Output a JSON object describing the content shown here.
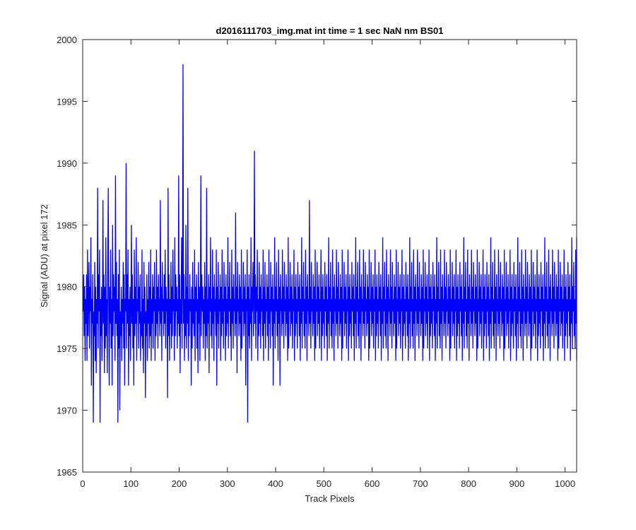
{
  "chart_data": {
    "type": "line",
    "title": "d2016111703_img.mat int time = 1 sec  NaN nm BS01",
    "xlabel": "Track Pixels",
    "ylabel": "Signal (ADU) at pixel 172",
    "xlim": [
      0,
      1024
    ],
    "ylim": [
      1965,
      2000
    ],
    "xticks": [
      "0",
      "100",
      "200",
      "300",
      "400",
      "500",
      "600",
      "700",
      "800",
      "900",
      "1000"
    ],
    "yticks": [
      "1965",
      "1970",
      "1975",
      "1980",
      "1985",
      "1990",
      "1995",
      "2000"
    ],
    "grid": false,
    "legend": "none",
    "series": [
      {
        "color": "#0000ff",
        "x_start": 1,
        "x_step": 1,
        "values": [
          1978,
          1981,
          1976,
          1980,
          1974,
          1979,
          1977,
          1981,
          1974,
          1983,
          1976,
          1979,
          1982,
          1975,
          1980,
          1978,
          1984,
          1972,
          1979,
          1977,
          1981,
          1969,
          1978,
          1976,
          1982,
          1974,
          1980,
          1973,
          1979,
          1977,
          1988,
          1975,
          1981,
          1978,
          1983,
          1969,
          1979,
          1976,
          1980,
          1974,
          1978,
          1987,
          1977,
          1981,
          1973,
          1980,
          1975,
          1984,
          1976,
          1979,
          1973,
          1982,
          1988,
          1978,
          1972,
          1980,
          1977,
          1983,
          1975,
          1979,
          1972,
          1985,
          1976,
          1981,
          1978,
          1980,
          1974,
          1989,
          1977,
          1982,
          1976,
          1979,
          1969,
          1981,
          1975,
          1983,
          1970,
          1978,
          1976,
          1980,
          1974,
          1979,
          1977,
          1982,
          1975,
          1981,
          1972,
          1979,
          1978,
          1990,
          1975,
          1981,
          1977,
          1983,
          1972,
          1979,
          1976,
          1980,
          1974,
          1978,
          1985,
          1977,
          1981,
          1975,
          1979,
          1972,
          1983,
          1976,
          1980,
          1977,
          1984,
          1974,
          1979,
          1978,
          1982,
          1975,
          1980,
          1977,
          1981,
          1974,
          1978,
          1976,
          1983,
          1975,
          1979,
          1973,
          1982,
          1977,
          1980,
          1971,
          1978,
          1976,
          1981,
          1974,
          1979,
          1977,
          1982,
          1975,
          1980,
          1976,
          1983,
          1974,
          1979,
          1977,
          1981,
          1975,
          1980,
          1978,
          1982,
          1974,
          1979,
          1976,
          1983,
          1977,
          1980,
          1975,
          1981,
          1978,
          1979,
          1976,
          1987,
          1977,
          1980,
          1974,
          1982,
          1978,
          1979,
          1976,
          1981,
          1977,
          1983,
          1975,
          1980,
          1978,
          1979,
          1971,
          1988,
          1976,
          1981,
          1974,
          1979,
          1977,
          1982,
          1975,
          1980,
          1976,
          1983,
          1978,
          1979,
          1974,
          1984,
          1976,
          1981,
          1978,
          1980,
          1975,
          1979,
          1977,
          1989,
          1976,
          1981,
          1973,
          1979,
          1977,
          1984,
          1975,
          1980,
          1998,
          1977,
          1981,
          1974,
          1979,
          1976,
          1985,
          1975,
          1980,
          1977,
          1988,
          1974,
          1979,
          1976,
          1981,
          1978,
          1979,
          1972,
          1980,
          1975,
          1982,
          1977,
          1979,
          1976,
          1983,
          1974,
          1980,
          1978,
          1981,
          1975,
          1979,
          1973,
          1982,
          1977,
          1980,
          1974,
          1979,
          1989,
          1976,
          1981,
          1978,
          1980,
          1975,
          1979,
          1977,
          1982,
          1974,
          1980,
          1976,
          1988,
          1975,
          1979,
          1977,
          1981,
          1973,
          1980,
          1978,
          1984,
          1976,
          1979,
          1975,
          1983,
          1977,
          1980,
          1974,
          1981,
          1978,
          1979,
          1976,
          1983,
          1972,
          1980,
          1977,
          1982,
          1975,
          1979,
          1978,
          1981,
          1974,
          1980,
          1976,
          1983,
          1977,
          1979,
          1975,
          1982,
          1978,
          1980,
          1974,
          1981,
          1976,
          1979,
          1977,
          1984,
          1975,
          1980,
          1978,
          1982,
          1976,
          1979,
          1974,
          1983,
          1977,
          1980,
          1975,
          1981,
          1978,
          1979,
          1976,
          1986,
          1977,
          1980,
          1973,
          1982,
          1978,
          1979,
          1976,
          1981,
          1977,
          1980,
          1974,
          1983,
          1975,
          1979,
          1978,
          1982,
          1976,
          1980,
          1977,
          1981,
          1972,
          1979,
          1978,
          1983,
          1969,
          1980,
          1976,
          1981,
          1975,
          1979,
          1977,
          1984,
          1974,
          1980,
          1978,
          1982,
          1976,
          1979,
          1991,
          1977,
          1981,
          1975,
          1980,
          1978,
          1983,
          1974,
          1979,
          1976,
          1982,
          1977,
          1980,
          1975,
          1981,
          1978,
          1979,
          1976,
          1983,
          1974,
          1980,
          1977,
          1982,
          1975,
          1979,
          1978,
          1981,
          1976,
          1980,
          1974,
          1983,
          1977,
          1979,
          1975,
          1982,
          1978,
          1980,
          1976,
          1981,
          1972,
          1979,
          1977,
          1984,
          1975,
          1980,
          1978,
          1982,
          1976,
          1979,
          1974,
          1983,
          1977,
          1980,
          1972,
          1981,
          1978,
          1979,
          1976,
          1983,
          1977,
          1980,
          1975,
          1982,
          1978,
          1979,
          1976,
          1981,
          1977,
          1980,
          1974,
          1984,
          1975,
          1979,
          1978,
          1982,
          1976,
          1980,
          1977,
          1981,
          1975,
          1979,
          1978,
          1983,
          1974,
          1980,
          1976,
          1981,
          1977,
          1979,
          1975,
          1982,
          1978,
          1980,
          1976,
          1981,
          1974,
          1979,
          1977,
          1984,
          1975,
          1980,
          1978,
          1982,
          1976,
          1979,
          1975,
          1983,
          1977,
          1980,
          1974,
          1981,
          1978,
          1979,
          1976,
          1987,
          1977,
          1980,
          1975,
          1982,
          1978,
          1979,
          1976,
          1981,
          1977,
          1980,
          1974,
          1983,
          1975,
          1979,
          1978,
          1982,
          1976,
          1980,
          1977,
          1981,
          1975,
          1979,
          1978,
          1983,
          1974,
          1980,
          1976,
          1981,
          1977,
          1979,
          1975,
          1982,
          1978,
          1980,
          1976,
          1981,
          1974,
          1979,
          1977,
          1984,
          1975,
          1980,
          1978,
          1982,
          1976,
          1979,
          1975,
          1983,
          1977,
          1980,
          1974,
          1981,
          1978,
          1979,
          1976,
          1983,
          1977,
          1980,
          1975,
          1982,
          1978,
          1979,
          1976,
          1981,
          1977,
          1980,
          1974,
          1983,
          1975,
          1979,
          1978,
          1982,
          1976,
          1980,
          1977,
          1981,
          1975,
          1979,
          1978,
          1983,
          1974,
          1980,
          1976,
          1981,
          1977,
          1979,
          1975,
          1982,
          1978,
          1980,
          1976,
          1981,
          1974,
          1979,
          1977,
          1984,
          1975,
          1980,
          1978,
          1982,
          1976,
          1979,
          1975,
          1983,
          1977,
          1980,
          1974,
          1981,
          1978,
          1979,
          1976,
          1983,
          1977,
          1980,
          1975,
          1982,
          1978,
          1979,
          1976,
          1981,
          1977,
          1980,
          1974,
          1983,
          1975,
          1979,
          1978,
          1982,
          1976,
          1980,
          1977,
          1981,
          1975,
          1979,
          1978,
          1983,
          1974,
          1980,
          1976,
          1981,
          1977,
          1979,
          1975,
          1982,
          1978,
          1980,
          1976,
          1981,
          1974,
          1979,
          1977,
          1984,
          1975,
          1980,
          1978,
          1982,
          1976,
          1979,
          1975,
          1983,
          1977,
          1980,
          1974,
          1981,
          1978,
          1979,
          1976,
          1983,
          1977,
          1980,
          1975,
          1982,
          1978,
          1979,
          1976,
          1981,
          1977,
          1980,
          1974,
          1983,
          1975,
          1979,
          1978,
          1982,
          1976,
          1980,
          1977,
          1981,
          1975,
          1979,
          1978,
          1983,
          1974,
          1980,
          1976,
          1981,
          1977,
          1979,
          1975,
          1982,
          1978,
          1980,
          1976,
          1981,
          1974,
          1979,
          1977,
          1984,
          1975,
          1980,
          1978,
          1982,
          1976,
          1979,
          1975,
          1983,
          1977,
          1980,
          1974,
          1981,
          1978,
          1979,
          1976,
          1983,
          1977,
          1980,
          1975,
          1982,
          1978,
          1979,
          1976,
          1981,
          1977,
          1980,
          1974,
          1983,
          1975,
          1979,
          1978,
          1982,
          1976,
          1980,
          1977,
          1981,
          1975,
          1979,
          1978,
          1983,
          1974,
          1980,
          1976,
          1981,
          1977,
          1979,
          1975,
          1982,
          1978,
          1980,
          1976,
          1981,
          1974,
          1979,
          1977,
          1984,
          1975,
          1980,
          1978,
          1982,
          1976,
          1979,
          1975,
          1983,
          1977,
          1980,
          1974,
          1981,
          1978,
          1979,
          1976,
          1983,
          1977,
          1980,
          1975,
          1982,
          1978,
          1979,
          1976,
          1981,
          1977,
          1980,
          1974,
          1983,
          1975,
          1979,
          1978,
          1982,
          1976,
          1980,
          1977,
          1981,
          1975,
          1979,
          1978,
          1983,
          1974,
          1980,
          1976,
          1981,
          1977,
          1979,
          1975,
          1982,
          1978,
          1980,
          1976,
          1981,
          1974,
          1979,
          1977,
          1984,
          1975,
          1980,
          1978,
          1982,
          1976,
          1979,
          1975,
          1983,
          1977,
          1980,
          1974,
          1981,
          1978,
          1979,
          1976,
          1983,
          1977,
          1980,
          1975,
          1982,
          1978,
          1979,
          1976,
          1981,
          1977,
          1980,
          1974,
          1983,
          1975,
          1979,
          1978,
          1982,
          1976,
          1980,
          1977,
          1981,
          1975,
          1979,
          1978,
          1983,
          1974,
          1980,
          1976,
          1981,
          1977,
          1979,
          1975,
          1982,
          1978,
          1980,
          1976,
          1981,
          1974,
          1979,
          1977,
          1984,
          1975,
          1980,
          1978,
          1982,
          1976,
          1979,
          1975,
          1983,
          1977,
          1980,
          1974,
          1981,
          1978,
          1979,
          1976,
          1983,
          1977,
          1980,
          1975,
          1982,
          1978,
          1979,
          1976,
          1981,
          1977,
          1980,
          1974,
          1983,
          1975,
          1979,
          1978,
          1982,
          1976,
          1980,
          1977,
          1981,
          1975,
          1979,
          1978,
          1983,
          1974,
          1980,
          1976,
          1981,
          1977,
          1979,
          1975,
          1982,
          1978,
          1980,
          1976,
          1981,
          1974,
          1979,
          1977,
          1984,
          1975,
          1980,
          1978,
          1982,
          1976,
          1979,
          1975,
          1983,
          1977,
          1980,
          1974,
          1981,
          1978,
          1979,
          1976,
          1983,
          1977,
          1980,
          1975,
          1982,
          1978,
          1979,
          1976,
          1981,
          1977,
          1980,
          1974,
          1983,
          1975,
          1979,
          1978,
          1982,
          1976,
          1980,
          1977,
          1981,
          1975,
          1979,
          1978,
          1983,
          1974,
          1980,
          1976,
          1981,
          1977,
          1979,
          1975,
          1982,
          1978,
          1980,
          1976,
          1981,
          1974,
          1979,
          1977,
          1984,
          1975,
          1980,
          1978,
          1982,
          1976,
          1979,
          1975,
          1983,
          1977,
          1980,
          1974,
          1981,
          1978,
          1979,
          1976,
          1983,
          1977,
          1980,
          1975,
          1982,
          1978,
          1979,
          1976,
          1981,
          1977,
          1980,
          1974,
          1983,
          1975,
          1979,
          1978,
          1982,
          1976,
          1980,
          1977,
          1981,
          1975,
          1979,
          1978,
          1983,
          1974,
          1980,
          1976,
          1981,
          1977,
          1979,
          1975,
          1982,
          1978,
          1980,
          1976,
          1981,
          1974,
          1979,
          1977,
          1984,
          1975,
          1980,
          1978,
          1982,
          1976,
          1979,
          1975,
          1983,
          1977,
          1980,
          1974,
          1981,
          1978,
          1979,
          1976,
          1983,
          1977,
          1980,
          1975,
          1982,
          1978,
          1979,
          1976,
          1981,
          1977,
          1980,
          1974,
          1983,
          1975,
          1979,
          1978,
          1982,
          1976,
          1980,
          1977,
          1981,
          1975,
          1979,
          1978,
          1983,
          1974,
          1980,
          1976,
          1981,
          1977,
          1979,
          1975,
          1982,
          1978,
          1980,
          1976,
          1981,
          1974,
          1979,
          1977,
          1984,
          1975,
          1980,
          1978,
          1982,
          1976,
          1979,
          1975,
          1983,
          1977,
          1980,
          1974,
          1981,
          1978,
          1979,
          1976,
          1983,
          1977
        ]
      }
    ]
  }
}
